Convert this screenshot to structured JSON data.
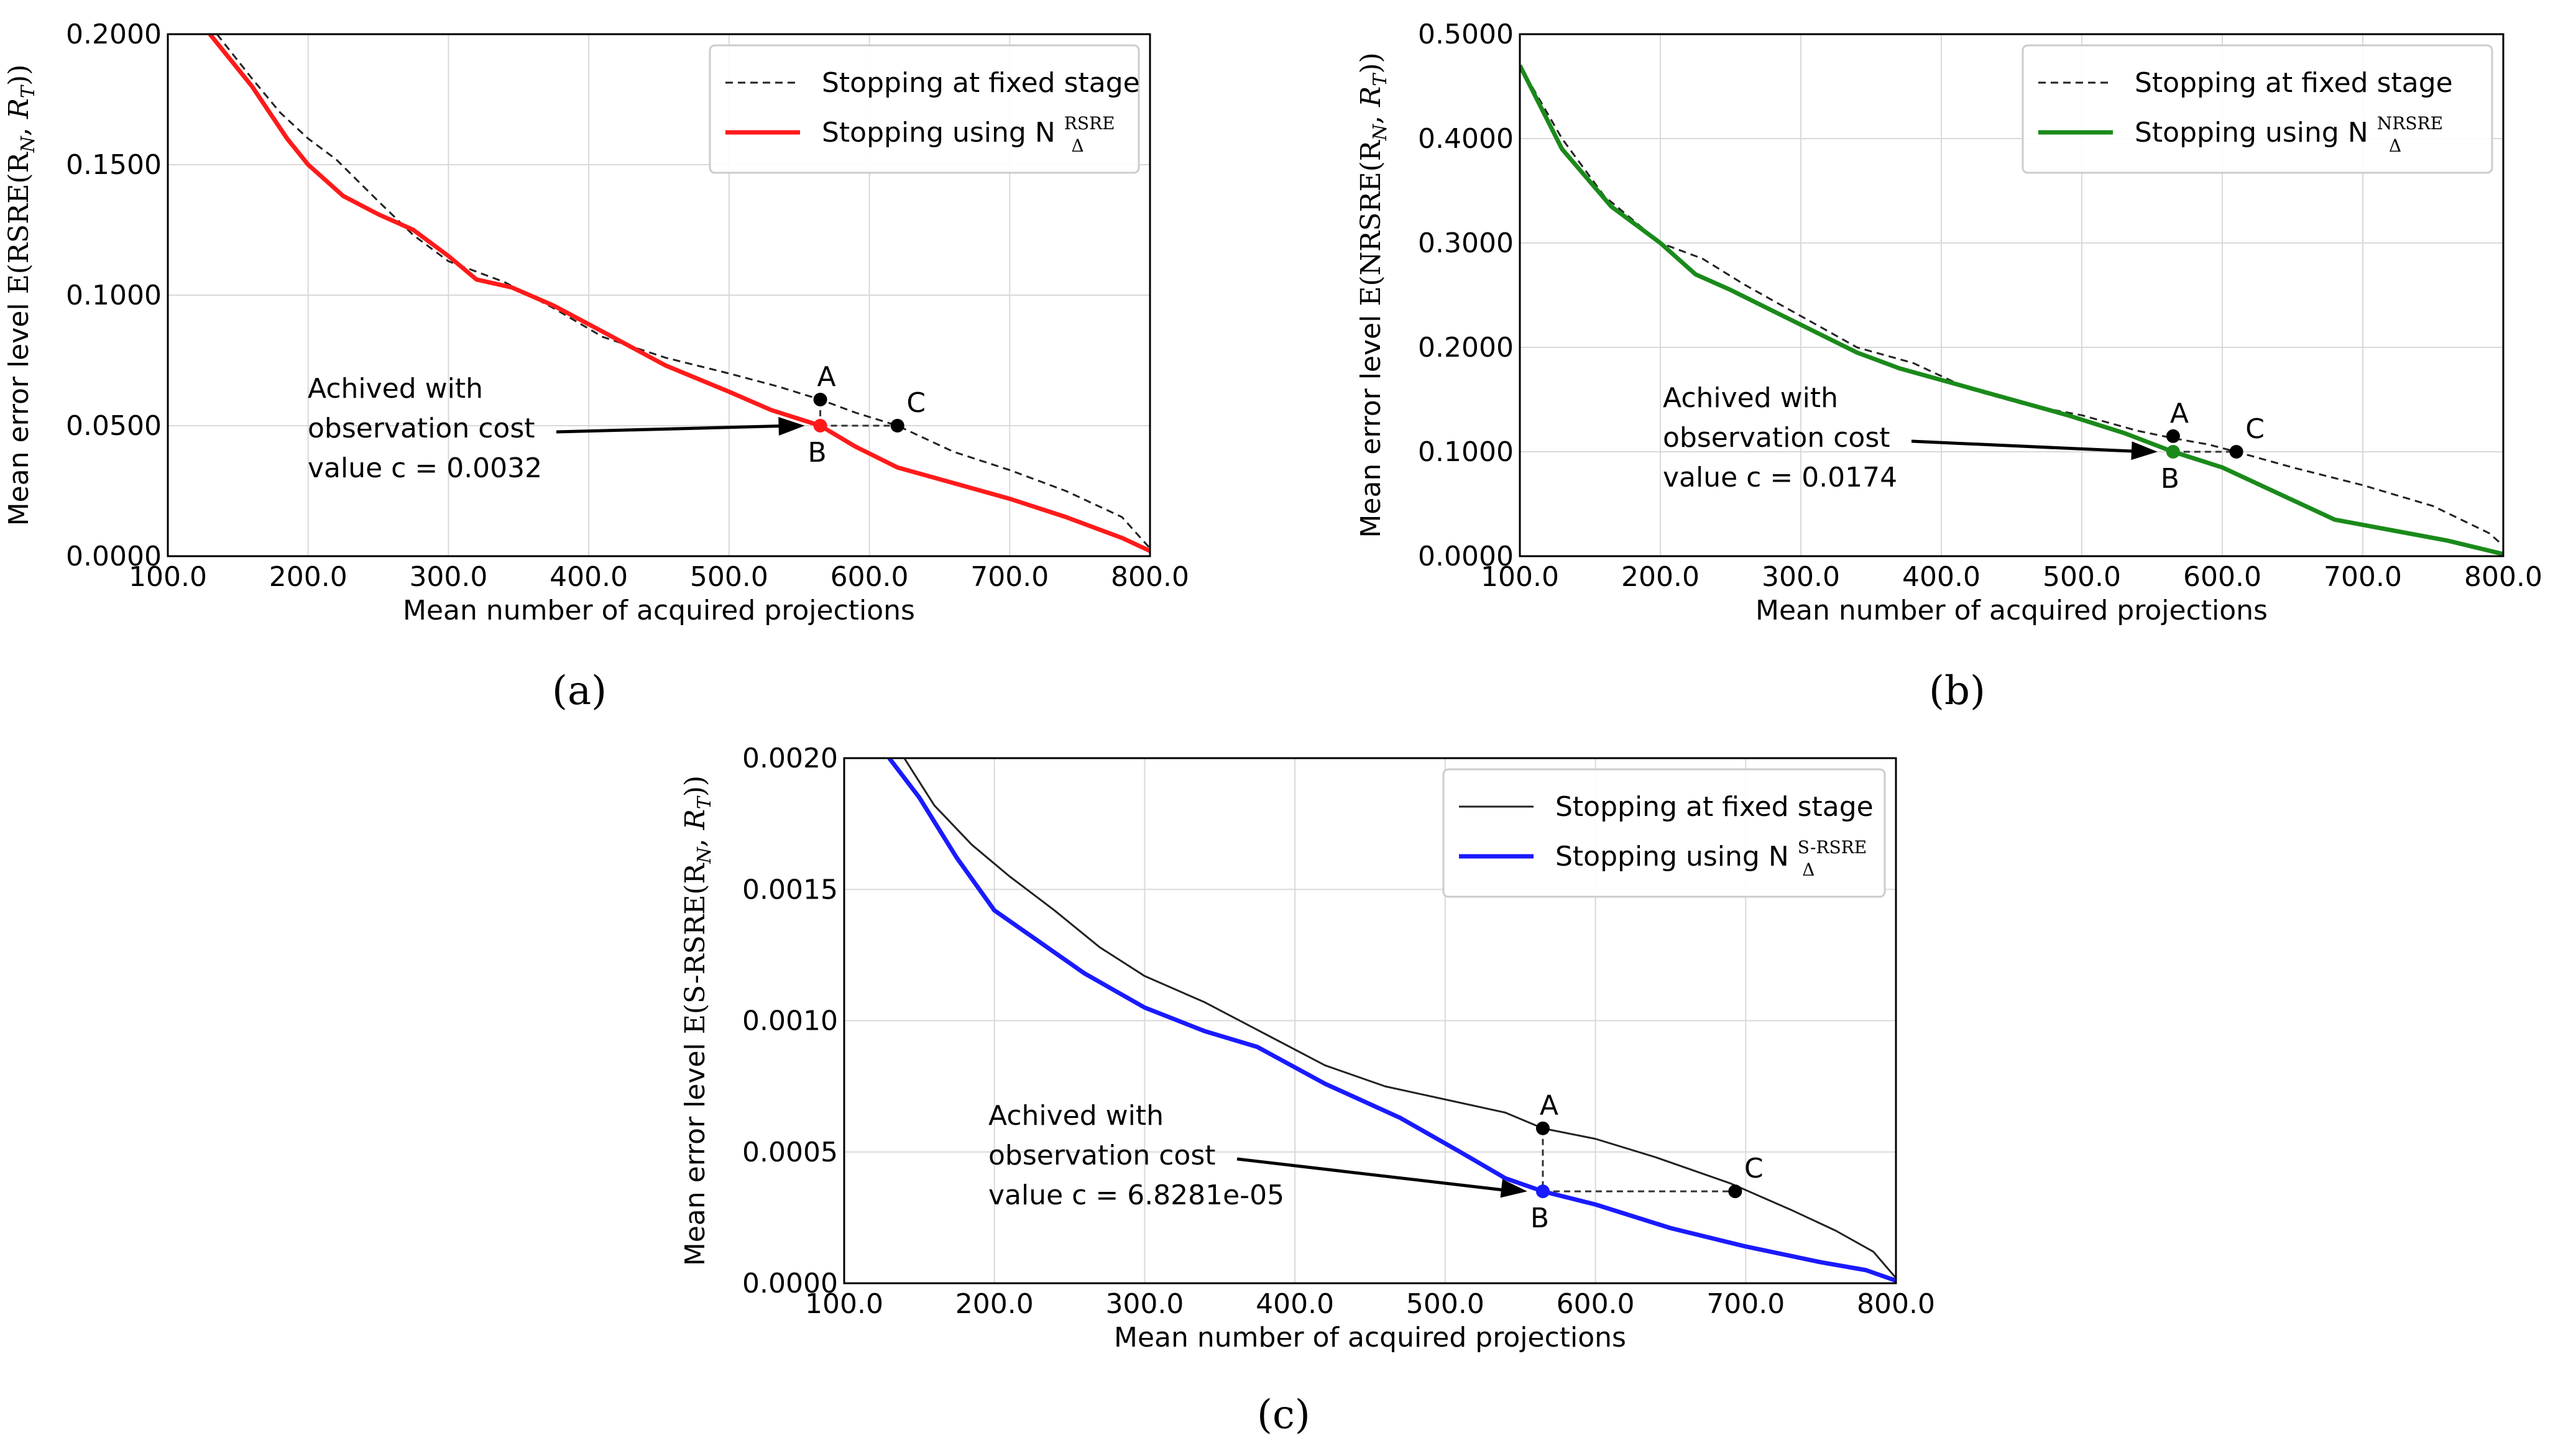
{
  "captions": [
    "(a)",
    "(b)",
    "(c)"
  ],
  "chart_data": [
    {
      "type": "line",
      "xlabel": "Mean number of acquired projections",
      "ylabel": "Mean error level E(RSRE(R_N, R_T))",
      "ylabel_prefix": "Mean error level",
      "ylabel_math": "E(RSRE(R",
      "xlim": [
        100,
        800
      ],
      "ylim": [
        0,
        0.2
      ],
      "x_ticks": [
        "100.0",
        "200.0",
        "300.0",
        "400.0",
        "500.0",
        "600.0",
        "700.0",
        "800.0"
      ],
      "y_ticks": [
        "0.0000",
        "0.0500",
        "0.1000",
        "0.1500",
        "0.2000"
      ],
      "y_tick_values": [
        0,
        0.05,
        0.1,
        0.15,
        0.2
      ],
      "x_tick_values": [
        100,
        200,
        300,
        400,
        500,
        600,
        700,
        800
      ],
      "grid": true,
      "legend": {
        "position": "top-right",
        "fixed_label": "Stopping at fixed stage",
        "adaptive_label": "Stopping using N",
        "superscript": "RSRE"
      },
      "series": [
        {
          "name": "Stopping at fixed stage",
          "style": "dashed",
          "color": "#222222",
          "x": [
            135,
            160,
            180,
            200,
            220,
            250,
            275,
            300,
            340,
            375,
            410,
            455,
            500,
            535,
            565,
            590,
            620,
            660,
            700,
            740,
            780,
            800
          ],
          "y": [
            0.2,
            0.183,
            0.17,
            0.16,
            0.152,
            0.136,
            0.123,
            0.113,
            0.105,
            0.095,
            0.084,
            0.076,
            0.07,
            0.065,
            0.06,
            0.055,
            0.05,
            0.04,
            0.033,
            0.025,
            0.015,
            0.003
          ]
        },
        {
          "name": "Stopping using N_Δ^RSRE",
          "style": "solid",
          "color": "#ff1a1a",
          "x": [
            130,
            160,
            185,
            200,
            225,
            250,
            275,
            300,
            320,
            345,
            375,
            410,
            455,
            500,
            530,
            565,
            590,
            620,
            660,
            700,
            740,
            780,
            800
          ],
          "y": [
            0.2,
            0.18,
            0.16,
            0.15,
            0.138,
            0.131,
            0.125,
            0.115,
            0.106,
            0.103,
            0.096,
            0.086,
            0.073,
            0.063,
            0.056,
            0.05,
            0.042,
            0.034,
            0.028,
            0.022,
            0.015,
            0.007,
            0.002
          ]
        }
      ],
      "points": [
        {
          "label": "A",
          "x": 565,
          "y": 0.06
        },
        {
          "label": "B",
          "x": 565,
          "y": 0.05
        },
        {
          "label": "C",
          "x": 620,
          "y": 0.05
        }
      ],
      "annotation": {
        "lines": [
          "Achived with",
          "observation cost",
          "value c = 0.0032"
        ]
      }
    },
    {
      "type": "line",
      "xlabel": "Mean number of acquired projections",
      "ylabel": "Mean error level E(NRSRE(R_N, R_T))",
      "ylabel_prefix": "Mean error level",
      "ylabel_math": "E(NRSRE(R",
      "xlim": [
        100,
        800
      ],
      "ylim": [
        0,
        0.5
      ],
      "x_ticks": [
        "100.0",
        "200.0",
        "300.0",
        "400.0",
        "500.0",
        "600.0",
        "700.0",
        "800.0"
      ],
      "y_ticks": [
        "0.0000",
        "0.1000",
        "0.2000",
        "0.3000",
        "0.4000",
        "0.5000"
      ],
      "y_tick_values": [
        0,
        0.1,
        0.2,
        0.3,
        0.4,
        0.5
      ],
      "x_tick_values": [
        100,
        200,
        300,
        400,
        500,
        600,
        700,
        800
      ],
      "grid": true,
      "legend": {
        "position": "top-right",
        "fixed_label": "Stopping at fixed stage",
        "adaptive_label": "Stopping using N",
        "superscript": "NRSRE"
      },
      "series": [
        {
          "name": "Stopping at fixed stage",
          "style": "dashed",
          "color": "#222222",
          "x": [
            100,
            130,
            160,
            200,
            230,
            260,
            300,
            340,
            380,
            420,
            460,
            500,
            540,
            565,
            590,
            610,
            650,
            700,
            750,
            790,
            800
          ],
          "y": [
            0.47,
            0.4,
            0.345,
            0.3,
            0.285,
            0.26,
            0.23,
            0.2,
            0.185,
            0.16,
            0.145,
            0.135,
            0.12,
            0.113,
            0.107,
            0.1,
            0.085,
            0.068,
            0.048,
            0.022,
            0.01
          ]
        },
        {
          "name": "Stopping using N_Δ^NRSRE",
          "style": "solid",
          "color": "#1a8a1a",
          "x": [
            100,
            130,
            165,
            200,
            225,
            250,
            280,
            310,
            340,
            370,
            410,
            450,
            490,
            530,
            565,
            600,
            640,
            680,
            720,
            760,
            800
          ],
          "y": [
            0.47,
            0.39,
            0.335,
            0.3,
            0.27,
            0.255,
            0.235,
            0.215,
            0.195,
            0.18,
            0.165,
            0.15,
            0.135,
            0.118,
            0.1,
            0.085,
            0.06,
            0.035,
            0.025,
            0.015,
            0.002
          ]
        }
      ],
      "points": [
        {
          "label": "A",
          "x": 565,
          "y": 0.115
        },
        {
          "label": "B",
          "x": 565,
          "y": 0.1
        },
        {
          "label": "C",
          "x": 610,
          "y": 0.1
        }
      ],
      "annotation": {
        "lines": [
          "Achived with",
          "observation cost",
          "value c = 0.0174"
        ]
      }
    },
    {
      "type": "line",
      "xlabel": "Mean number of acquired projections",
      "ylabel": "Mean error level E(S-RSRE(R_N, R_T))",
      "ylabel_prefix": "Mean error level",
      "ylabel_math": "E(S-RSRE(R",
      "xlim": [
        100,
        800
      ],
      "ylim": [
        0,
        0.002
      ],
      "x_ticks": [
        "100.0",
        "200.0",
        "300.0",
        "400.0",
        "500.0",
        "600.0",
        "700.0",
        "800.0"
      ],
      "y_ticks": [
        "0.0000",
        "0.0005",
        "0.0010",
        "0.0015",
        "0.0020"
      ],
      "y_tick_values": [
        0,
        0.0005,
        0.001,
        0.0015,
        0.002
      ],
      "x_tick_values": [
        100,
        200,
        300,
        400,
        500,
        600,
        700,
        800
      ],
      "grid": true,
      "legend": {
        "position": "top-right",
        "fixed_label": "Stopping at fixed stage",
        "adaptive_label": "Stopping using N",
        "superscript": "S-RSRE"
      },
      "series": [
        {
          "name": "Stopping at fixed stage",
          "style": "solid",
          "color": "#222222",
          "x": [
            140,
            160,
            185,
            210,
            240,
            270,
            300,
            340,
            380,
            420,
            460,
            500,
            540,
            565,
            600,
            640,
            690,
            730,
            760,
            785,
            800
          ],
          "y": [
            0.002,
            0.00182,
            0.00167,
            0.00155,
            0.00142,
            0.00128,
            0.00117,
            0.00107,
            0.00095,
            0.00083,
            0.00075,
            0.0007,
            0.00065,
            0.00059,
            0.00055,
            0.00048,
            0.00038,
            0.00028,
            0.0002,
            0.00012,
            2e-05
          ]
        },
        {
          "name": "Stopping using N_Δ^S-RSRE",
          "style": "solid",
          "color": "#1a1aff",
          "x": [
            130,
            150,
            175,
            200,
            225,
            260,
            300,
            340,
            375,
            420,
            470,
            510,
            540,
            565,
            600,
            650,
            700,
            750,
            780,
            800
          ],
          "y": [
            0.002,
            0.00185,
            0.00162,
            0.00142,
            0.00132,
            0.00118,
            0.00105,
            0.00096,
            0.0009,
            0.00076,
            0.00063,
            0.0005,
            0.0004,
            0.00035,
            0.0003,
            0.00021,
            0.00014,
            8e-05,
            5e-05,
            1e-05
          ]
        }
      ],
      "points": [
        {
          "label": "A",
          "x": 565,
          "y": 0.00059
        },
        {
          "label": "B",
          "x": 565,
          "y": 0.00035
        },
        {
          "label": "C",
          "x": 693,
          "y": 0.00035
        }
      ],
      "annotation": {
        "lines": [
          "Achived with",
          "observation cost",
          "value c = 6.8281e-05"
        ]
      }
    }
  ]
}
